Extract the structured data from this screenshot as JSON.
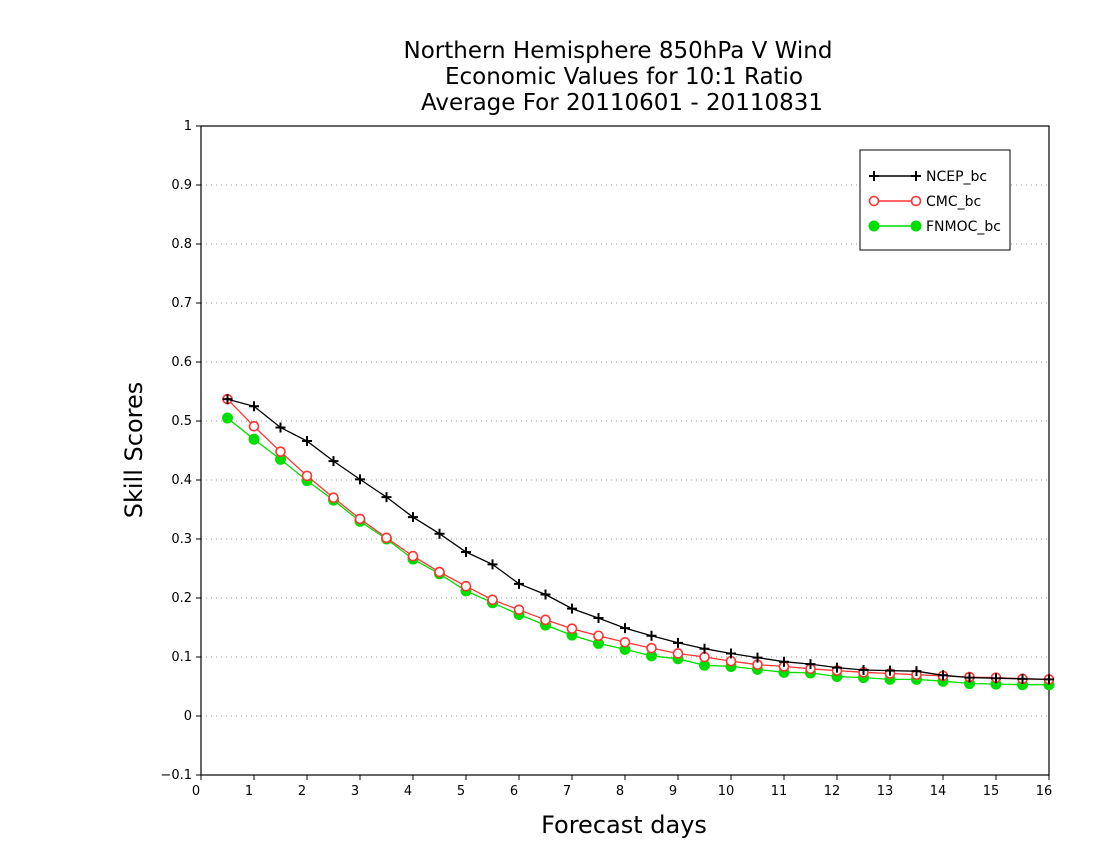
{
  "chart_data": {
    "type": "line",
    "title_lines": [
      "Northern Hemisphere 850hPa V Wind",
      "Economic Values for 10:1 Ratio",
      "Average For 20110601 - 20110831"
    ],
    "xlabel": "Forecast days",
    "ylabel": "Skill Scores",
    "xlim": [
      0,
      16
    ],
    "ylim": [
      -0.1,
      1
    ],
    "x_ticks": [
      "0",
      "1",
      "2",
      "3",
      "4",
      "5",
      "6",
      "7",
      "8",
      "9",
      "10",
      "11",
      "12",
      "13",
      "14",
      "15",
      "16"
    ],
    "y_ticks": [
      "−0.1",
      "0",
      "0.1",
      "0.2",
      "0.3",
      "0.4",
      "0.5",
      "0.6",
      "0.7",
      "0.8",
      "0.9",
      "1"
    ],
    "grid": "dotted-horizontal",
    "legend_position": "top-right",
    "x": [
      0.5,
      1,
      1.5,
      2,
      2.5,
      3,
      3.5,
      4,
      4.5,
      5,
      5.5,
      6,
      6.5,
      7,
      7.5,
      8,
      8.5,
      9,
      9.5,
      10,
      10.5,
      11,
      11.5,
      12,
      12.5,
      13,
      13.5,
      14,
      14.5,
      15,
      15.5,
      16
    ],
    "series": [
      {
        "name": "NCEP_bc",
        "color": "#000000",
        "marker": "plus",
        "values": [
          0.537,
          0.525,
          0.489,
          0.466,
          0.432,
          0.401,
          0.371,
          0.337,
          0.309,
          0.278,
          0.257,
          0.224,
          0.206,
          0.182,
          0.166,
          0.149,
          0.136,
          0.124,
          0.114,
          0.106,
          0.099,
          0.092,
          0.088,
          0.082,
          0.078,
          0.077,
          0.076,
          0.069,
          0.065,
          0.064,
          0.063,
          0.062
        ]
      },
      {
        "name": "CMC_bc",
        "color": "#ff3333",
        "marker": "open-circle",
        "values": [
          0.537,
          0.491,
          0.448,
          0.407,
          0.37,
          0.334,
          0.302,
          0.271,
          0.244,
          0.22,
          0.197,
          0.18,
          0.163,
          0.148,
          0.136,
          0.125,
          0.115,
          0.106,
          0.1,
          0.093,
          0.087,
          0.084,
          0.08,
          0.077,
          0.074,
          0.072,
          0.07,
          0.068,
          0.066,
          0.065,
          0.063,
          0.062
        ]
      },
      {
        "name": "FNMOC_bc",
        "color": "#00dd00",
        "marker": "filled-circle",
        "values": [
          0.505,
          0.469,
          0.435,
          0.399,
          0.366,
          0.33,
          0.3,
          0.266,
          0.241,
          0.212,
          0.192,
          0.172,
          0.154,
          0.137,
          0.123,
          0.113,
          0.102,
          0.097,
          0.086,
          0.084,
          0.079,
          0.074,
          0.073,
          0.067,
          0.065,
          0.062,
          0.062,
          0.059,
          0.055,
          0.054,
          0.053,
          0.053
        ]
      }
    ]
  }
}
